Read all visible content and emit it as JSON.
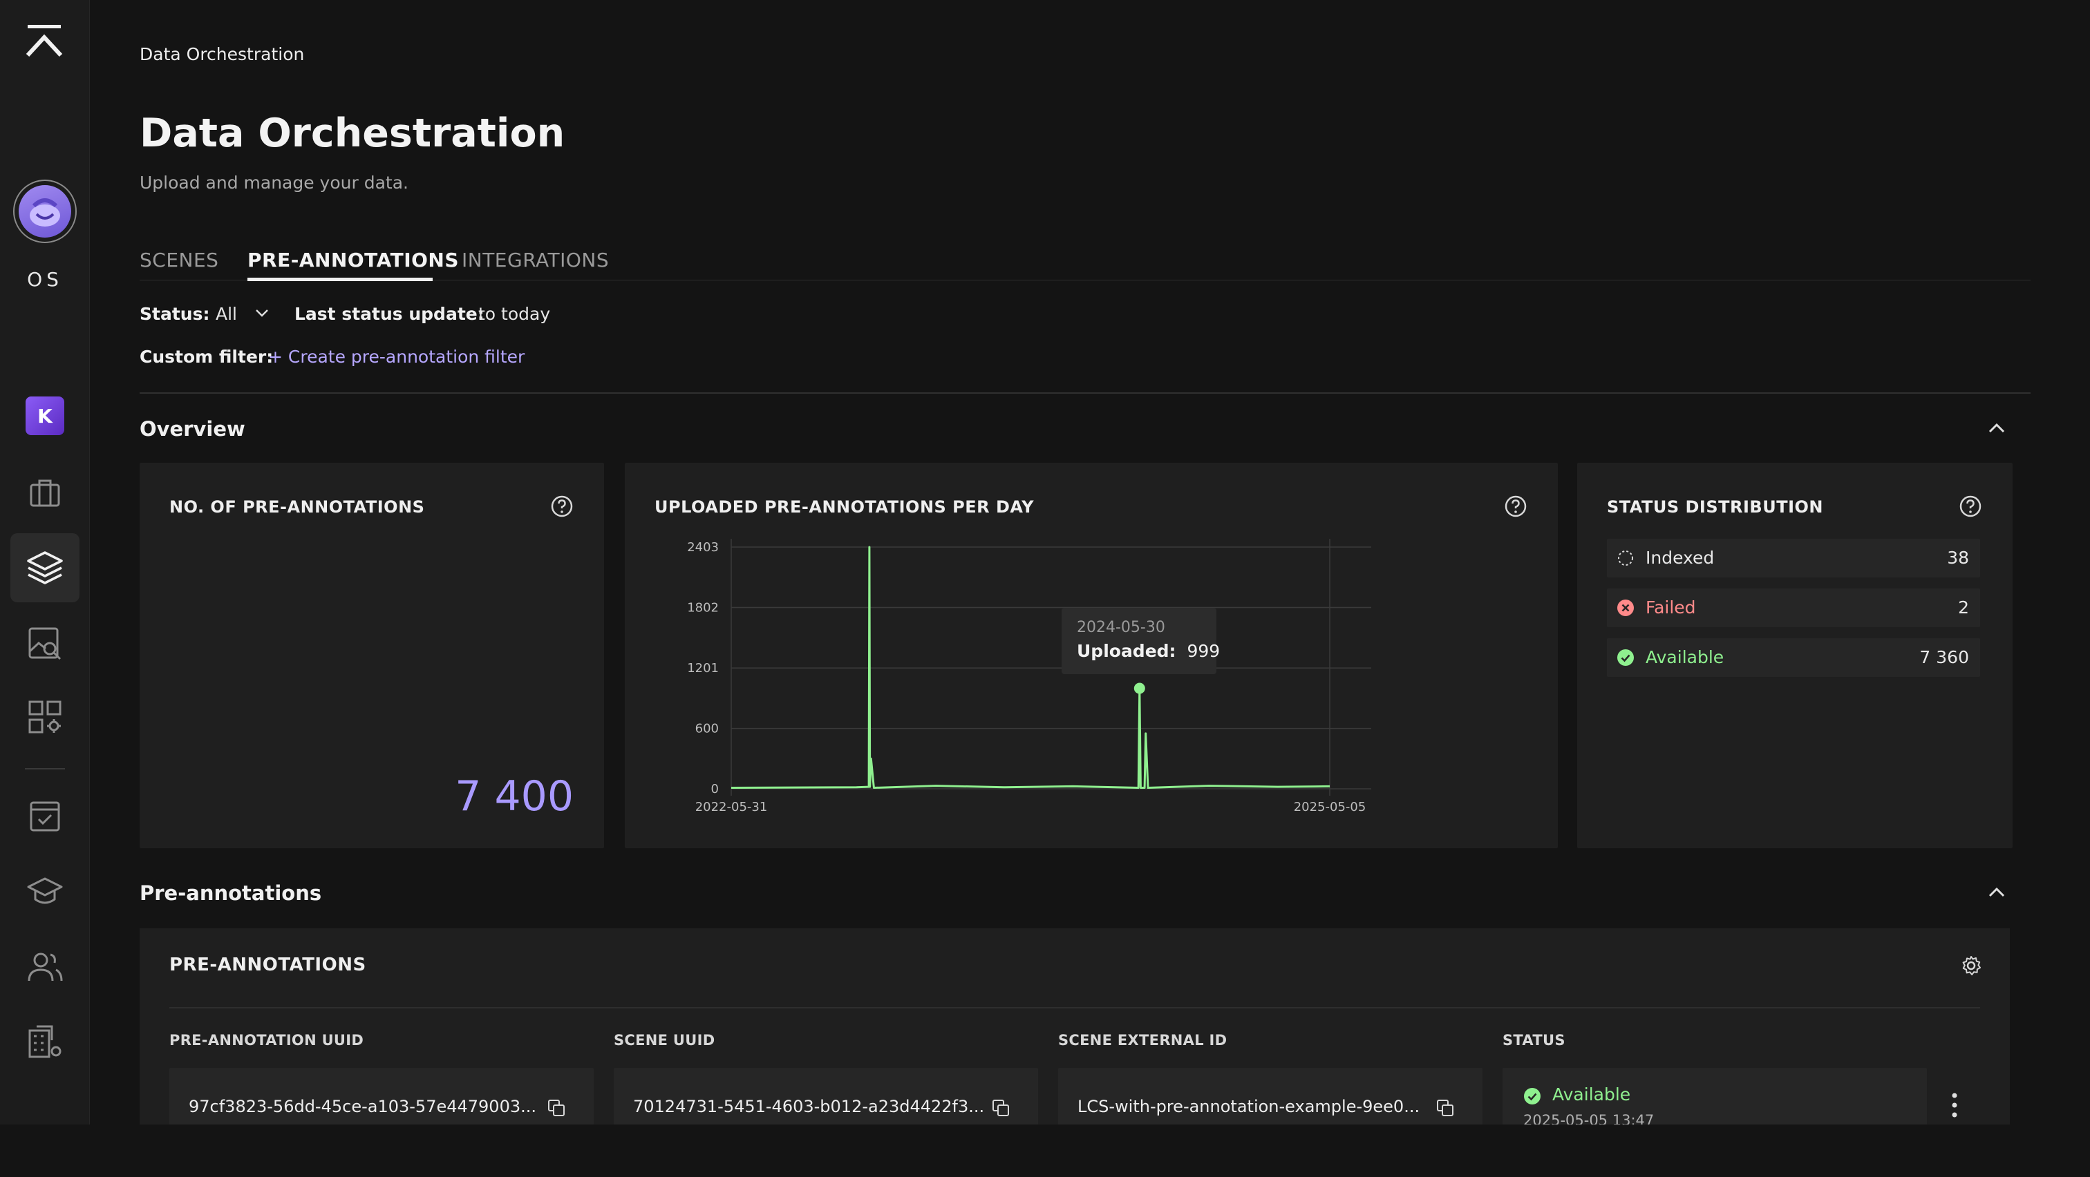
{
  "sidebar": {
    "initials": "OS",
    "workspace_letter": "K",
    "items": [
      {
        "icon": "briefcase-icon"
      },
      {
        "icon": "layers-icon",
        "active": true
      },
      {
        "icon": "image-search-icon"
      },
      {
        "icon": "apps-settings-icon"
      },
      {
        "icon": "task-check-icon"
      },
      {
        "icon": "graduation-cap-icon"
      },
      {
        "icon": "users-icon"
      },
      {
        "icon": "building-settings-icon"
      }
    ]
  },
  "breadcrumb": "Data Orchestration",
  "page": {
    "title": "Data Orchestration",
    "subtitle": "Upload and manage your data."
  },
  "tabs": [
    {
      "label": "SCENES",
      "active": false
    },
    {
      "label": "PRE-ANNOTATIONS",
      "active": true
    },
    {
      "label": "INTEGRATIONS",
      "active": false
    }
  ],
  "filters": {
    "status_label": "Status:",
    "status_value": "All",
    "last_update_label": "Last status update:",
    "last_update_value": "to today",
    "custom_label": "Custom filter:",
    "custom_link": "+ Create pre-annotation filter"
  },
  "overview": {
    "title": "Overview",
    "count_card": {
      "title": "NO. OF PRE-ANNOTATIONS",
      "value": "7 400"
    },
    "chart_card": {
      "title": "UPLOADED PRE-ANNOTATIONS PER DAY",
      "tooltip": {
        "date": "2024-05-30",
        "label": "Uploaded:",
        "value": "999"
      }
    },
    "status_card": {
      "title": "STATUS DISTRIBUTION",
      "rows": [
        {
          "label": "Indexed",
          "count": "38",
          "color": "#e8e8e8"
        },
        {
          "label": "Failed",
          "count": "2",
          "color": "#ff8080"
        },
        {
          "label": "Available",
          "count": "7 360",
          "color": "#8ff08f"
        }
      ]
    }
  },
  "chart_data": {
    "type": "line",
    "title": "UPLOADED PRE-ANNOTATIONS PER DAY",
    "xlabel": "",
    "ylabel": "",
    "x_range": [
      "2022-05-31",
      "2025-05-05"
    ],
    "x_tick_labels": [
      "2022-05-31",
      "2025-05-05"
    ],
    "y_tick_labels": [
      "0",
      "600",
      "1201",
      "1802",
      "2403"
    ],
    "ylim": [
      0,
      2403
    ],
    "grid": true,
    "color": "#8ff08f",
    "series": [
      {
        "x": [
          "2022-05-31",
          "2023-01-10",
          "2023-02-01",
          "2023-02-02",
          "2023-02-03",
          "2023-02-05",
          "2023-02-10",
          "2023-06-01",
          "2023-10-01",
          "2024-02-01",
          "2024-05-28",
          "2024-05-30",
          "2024-06-01",
          "2024-06-08",
          "2024-06-10",
          "2024-06-14",
          "2024-10-01",
          "2025-02-01",
          "2025-05-05"
        ],
        "values": [
          10,
          15,
          20,
          2403,
          20,
          300,
          10,
          30,
          15,
          25,
          10,
          999,
          10,
          10,
          550,
          10,
          30,
          20,
          25
        ]
      }
    ],
    "highlight": {
      "x": "2024-05-30",
      "y": 999
    }
  },
  "preannotations": {
    "section_title": "Pre-annotations",
    "card_title": "PRE-ANNOTATIONS",
    "columns": [
      "PRE-ANNOTATION UUID",
      "SCENE UUID",
      "SCENE EXTERNAL ID",
      "STATUS"
    ],
    "rows": [
      {
        "uuid": "97cf3823-56dd-45ce-a103-57e4479003...",
        "scene_uuid": "70124731-5451-4603-b012-a23d4422f3...",
        "scene_external_id": "LCS-with-pre-annotation-example-9ee0...",
        "status": "Available",
        "status_date": "2025-05-05 13:47"
      }
    ]
  }
}
